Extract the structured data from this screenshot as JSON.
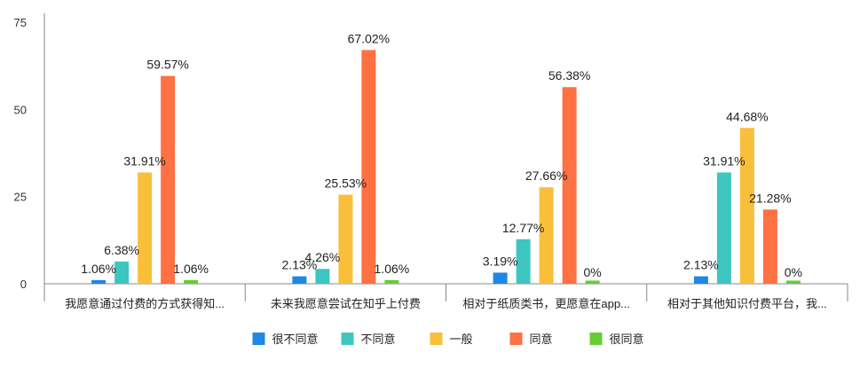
{
  "chart_data": {
    "type": "bar",
    "ylim": [
      0,
      75
    ],
    "yticks": [
      0,
      25,
      50,
      75
    ],
    "grid": false,
    "legend_position": "bottom",
    "categories": [
      "我愿意通过付费的方式获得知...",
      "未来我愿意尝试在知乎上付费",
      "相对于纸质类书，更愿意在app...",
      "相对于其他知识付费平台，我..."
    ],
    "series": [
      {
        "name": "很不同意",
        "color": "#1E88E5",
        "values": [
          1.06,
          2.13,
          3.19,
          2.13
        ],
        "labels": [
          "1.06%",
          "2.13%",
          "3.19%",
          "2.13%"
        ]
      },
      {
        "name": "不同意",
        "color": "#3DC6C0",
        "values": [
          6.38,
          4.26,
          12.77,
          31.91
        ],
        "labels": [
          "6.38%",
          "4.26%",
          "12.77%",
          "31.91%"
        ]
      },
      {
        "name": "一般",
        "color": "#F9BF3B",
        "values": [
          31.91,
          25.53,
          27.66,
          44.68
        ],
        "labels": [
          "31.91%",
          "25.53%",
          "27.66%",
          "44.68%"
        ]
      },
      {
        "name": "同意",
        "color": "#FF7043",
        "values": [
          59.57,
          67.02,
          56.38,
          21.28
        ],
        "labels": [
          "59.57%",
          "67.02%",
          "56.38%",
          "21.28%"
        ]
      },
      {
        "name": "很同意",
        "color": "#66CC33",
        "values": [
          1.06,
          1.06,
          0,
          0
        ],
        "labels": [
          "1.06%",
          "1.06%",
          "0%",
          "0%"
        ]
      }
    ]
  }
}
